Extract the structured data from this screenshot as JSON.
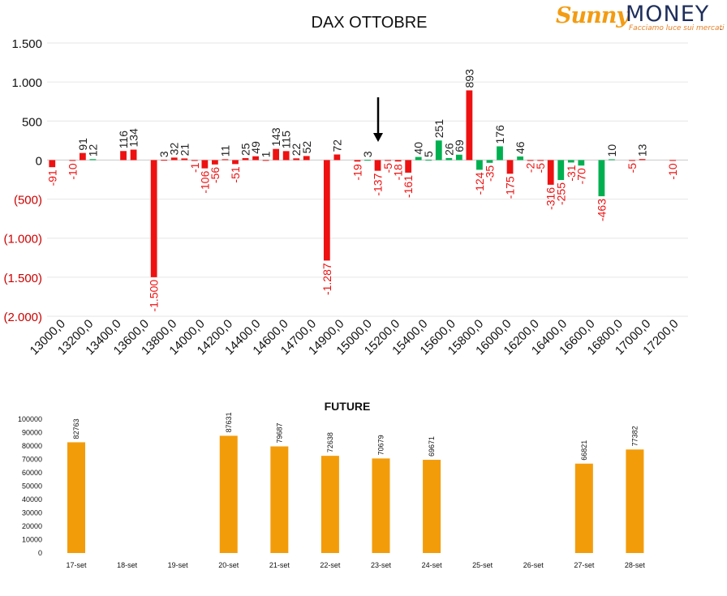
{
  "logo": {
    "brand_part1": "Sunny",
    "brand_part2": "MONEY",
    "tagline": "Facciamo luce sui mercati"
  },
  "chart_data": [
    {
      "type": "bar",
      "title": "DAX OTTOBRE",
      "ylim": [
        -2000,
        1500
      ],
      "yticks": [
        1500,
        1000,
        500,
        0,
        -500,
        -1000,
        -1500,
        -2000
      ],
      "ytick_labels": [
        "1.500",
        "1.000",
        "500",
        "0",
        "(500)",
        "(1.000)",
        "(1.500)",
        "(2.000)"
      ],
      "xtick_labels": [
        "13000,0",
        "13200,0",
        "13400,0",
        "13600,0",
        "13800,0",
        "14000,0",
        "14200,0",
        "14400,0",
        "14600,0",
        "14700,0",
        "14900,0",
        "15000,0",
        "15200,0",
        "15400,0",
        "15600,0",
        "15800,0",
        "16000,0",
        "16200,0",
        "16400,0",
        "16600,0",
        "16800,0",
        "17000,0",
        "17200,0"
      ],
      "grid": true,
      "colors": {
        "negative": "#ee1111",
        "positive": "#00b050",
        "positive_labels": "#222222",
        "negative_labels": "#ee1111"
      },
      "series": [
        {
          "values": [
            -91,
            0,
            -10,
            91,
            12,
            0,
            0,
            116,
            134,
            0,
            -1500,
            3,
            32,
            21,
            -1,
            -106,
            -56,
            11,
            -51,
            25,
            49,
            1,
            143,
            115,
            22,
            52,
            0,
            -1287,
            72,
            0,
            -19,
            3,
            -137,
            -5,
            -18,
            -161,
            40,
            5,
            251,
            26,
            69,
            893,
            -124,
            -35,
            176,
            -175,
            46,
            -2,
            -5,
            -316,
            -255,
            -31,
            -70,
            0,
            -463,
            10,
            0,
            -5,
            13,
            0,
            0,
            -10,
            0
          ]
        },
        {
          "values": [
            0,
            0,
            0,
            0,
            12,
            0,
            0,
            0,
            0,
            0,
            0,
            0,
            0,
            0,
            0,
            0,
            0,
            0,
            0,
            0,
            0,
            0,
            0,
            0,
            0,
            0,
            0,
            0,
            0,
            0,
            0,
            3,
            0,
            0,
            0,
            0,
            40,
            5,
            251,
            26,
            69,
            0,
            -124,
            -35,
            176,
            0,
            46,
            0,
            0,
            0,
            -255,
            -31,
            -70,
            0,
            -463,
            10,
            0,
            0,
            0,
            0,
            0,
            0,
            0
          ]
        }
      ],
      "annotation": "arrow-down-icon"
    },
    {
      "type": "bar",
      "title": "FUTURE",
      "categories": [
        "17-set",
        "18-set",
        "19-set",
        "20-set",
        "21-set",
        "22-set",
        "23-set",
        "24-set",
        "25-set",
        "26-set",
        "27-set",
        "28-set"
      ],
      "values": [
        82763,
        null,
        null,
        87631,
        79687,
        72638,
        70679,
        69671,
        null,
        null,
        66821,
        77382
      ],
      "ylim": [
        0,
        100000
      ],
      "yticks": [
        0,
        10000,
        20000,
        30000,
        40000,
        50000,
        60000,
        70000,
        80000,
        90000,
        100000
      ],
      "color": "#f39c0a"
    }
  ]
}
